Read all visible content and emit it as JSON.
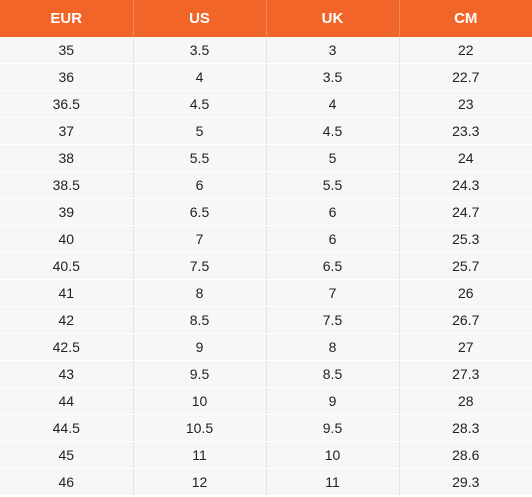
{
  "colors": {
    "header_bg": "#f26528",
    "header_text": "#ffffff",
    "row_bg": "#f7f7f7",
    "cell_text": "#222222"
  },
  "table": {
    "headers": [
      "EUR",
      "US",
      "UK",
      "CM"
    ],
    "rows": [
      [
        "35",
        "3.5",
        "3",
        "22"
      ],
      [
        "36",
        "4",
        "3.5",
        "22.7"
      ],
      [
        "36.5",
        "4.5",
        "4",
        "23"
      ],
      [
        "37",
        "5",
        "4.5",
        "23.3"
      ],
      [
        "38",
        "5.5",
        "5",
        "24"
      ],
      [
        "38.5",
        "6",
        "5.5",
        "24.3"
      ],
      [
        "39",
        "6.5",
        "6",
        "24.7"
      ],
      [
        "40",
        "7",
        "6",
        "25.3"
      ],
      [
        "40.5",
        "7.5",
        "6.5",
        "25.7"
      ],
      [
        "41",
        "8",
        "7",
        "26"
      ],
      [
        "42",
        "8.5",
        "7.5",
        "26.7"
      ],
      [
        "42.5",
        "9",
        "8",
        "27"
      ],
      [
        "43",
        "9.5",
        "8.5",
        "27.3"
      ],
      [
        "44",
        "10",
        "9",
        "28"
      ],
      [
        "44.5",
        "10.5",
        "9.5",
        "28.3"
      ],
      [
        "45",
        "11",
        "10",
        "28.6"
      ],
      [
        "46",
        "12",
        "11",
        "29.3"
      ]
    ]
  }
}
